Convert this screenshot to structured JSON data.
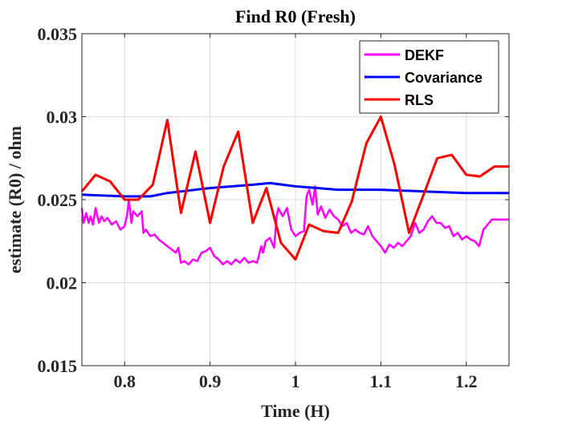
{
  "chart_data": {
    "type": "line",
    "title": "Find R0 (Fresh)",
    "xlabel": "Time (H)",
    "ylabel": "estimate (R0) / ohm",
    "xlim": [
      0.75,
      1.25
    ],
    "ylim": [
      0.015,
      0.035
    ],
    "xticks": [
      0.8,
      0.9,
      1,
      1.1,
      1.2
    ],
    "xtick_labels": [
      "0.8",
      "0.9",
      "1",
      "1.1",
      "1.2"
    ],
    "yticks": [
      0.015,
      0.02,
      0.025,
      0.03,
      0.035
    ],
    "ytick_labels": [
      "0.015",
      "0.02",
      "0.025",
      "0.03",
      "0.035"
    ],
    "grid": true,
    "legend_position": "top-right",
    "series": [
      {
        "name": "DEKF",
        "color": "#ff00ff",
        "x": [
          0.75,
          0.752,
          0.755,
          0.758,
          0.76,
          0.763,
          0.766,
          0.77,
          0.773,
          0.776,
          0.78,
          0.785,
          0.79,
          0.795,
          0.8,
          0.803,
          0.805,
          0.808,
          0.81,
          0.815,
          0.82,
          0.822,
          0.825,
          0.83,
          0.835,
          0.84,
          0.845,
          0.85,
          0.855,
          0.86,
          0.863,
          0.866,
          0.87,
          0.875,
          0.88,
          0.885,
          0.89,
          0.895,
          0.9,
          0.905,
          0.91,
          0.915,
          0.92,
          0.925,
          0.93,
          0.935,
          0.94,
          0.945,
          0.95,
          0.955,
          0.96,
          0.962,
          0.965,
          0.97,
          0.975,
          0.978,
          0.98,
          0.985,
          0.99,
          0.995,
          1.0,
          1.005,
          1.01,
          1.013,
          1.016,
          1.02,
          1.023,
          1.026,
          1.03,
          1.035,
          1.04,
          1.045,
          1.05,
          1.055,
          1.06,
          1.065,
          1.07,
          1.075,
          1.08,
          1.085,
          1.09,
          1.095,
          1.1,
          1.105,
          1.11,
          1.115,
          1.12,
          1.125,
          1.13,
          1.135,
          1.14,
          1.145,
          1.15,
          1.155,
          1.16,
          1.165,
          1.17,
          1.175,
          1.18,
          1.185,
          1.19,
          1.195,
          1.2,
          1.205,
          1.21,
          1.215,
          1.22,
          1.225,
          1.23,
          1.25
        ],
        "y": [
          0.0245,
          0.0236,
          0.0242,
          0.0236,
          0.024,
          0.0235,
          0.0245,
          0.0236,
          0.024,
          0.0237,
          0.0239,
          0.0235,
          0.0237,
          0.0232,
          0.0234,
          0.0241,
          0.025,
          0.0236,
          0.0243,
          0.024,
          0.0243,
          0.023,
          0.0232,
          0.0228,
          0.0229,
          0.0226,
          0.0224,
          0.0222,
          0.022,
          0.0218,
          0.0221,
          0.0212,
          0.0213,
          0.0211,
          0.0214,
          0.0213,
          0.0218,
          0.0219,
          0.0221,
          0.0216,
          0.0214,
          0.0211,
          0.0213,
          0.0211,
          0.0214,
          0.0212,
          0.0215,
          0.0212,
          0.0213,
          0.0212,
          0.0222,
          0.0218,
          0.0225,
          0.0227,
          0.0221,
          0.024,
          0.0245,
          0.024,
          0.0245,
          0.0232,
          0.0228,
          0.023,
          0.0231,
          0.0252,
          0.0256,
          0.0247,
          0.0258,
          0.0241,
          0.0246,
          0.0239,
          0.0244,
          0.024,
          0.0238,
          0.0234,
          0.0236,
          0.023,
          0.0232,
          0.023,
          0.0229,
          0.0234,
          0.0228,
          0.0225,
          0.0222,
          0.0218,
          0.0223,
          0.0221,
          0.0224,
          0.0222,
          0.0225,
          0.0228,
          0.0236,
          0.023,
          0.0232,
          0.0237,
          0.024,
          0.0236,
          0.0236,
          0.0233,
          0.0234,
          0.0228,
          0.023,
          0.0226,
          0.0228,
          0.0226,
          0.0225,
          0.0222,
          0.0232,
          0.0235,
          0.0238,
          0.0238
        ]
      },
      {
        "name": "Covariance",
        "color": "#0000ff",
        "x": [
          0.75,
          0.8,
          0.83,
          0.85,
          0.9,
          0.95,
          0.97,
          1.0,
          1.05,
          1.1,
          1.15,
          1.2,
          1.25
        ],
        "y": [
          0.0253,
          0.0252,
          0.0252,
          0.0254,
          0.0257,
          0.0259,
          0.026,
          0.0258,
          0.0256,
          0.0256,
          0.0255,
          0.0254,
          0.0254
        ]
      },
      {
        "name": "RLS",
        "color": "#ff0000",
        "x": [
          0.75,
          0.766,
          0.783,
          0.8,
          0.816,
          0.833,
          0.85,
          0.866,
          0.883,
          0.9,
          0.916,
          0.933,
          0.95,
          0.966,
          0.983,
          1.0,
          1.016,
          1.033,
          1.05,
          1.066,
          1.083,
          1.1,
          1.116,
          1.133,
          1.15,
          1.166,
          1.183,
          1.2,
          1.216,
          1.233,
          1.25
        ],
        "y": [
          0.0255,
          0.0265,
          0.0261,
          0.025,
          0.025,
          0.0259,
          0.0298,
          0.0242,
          0.0279,
          0.0236,
          0.027,
          0.0291,
          0.0236,
          0.0257,
          0.0224,
          0.0214,
          0.0235,
          0.0231,
          0.023,
          0.0249,
          0.0284,
          0.03,
          0.0271,
          0.023,
          0.0253,
          0.0275,
          0.0277,
          0.0265,
          0.0264,
          0.027,
          0.027
        ]
      }
    ]
  }
}
